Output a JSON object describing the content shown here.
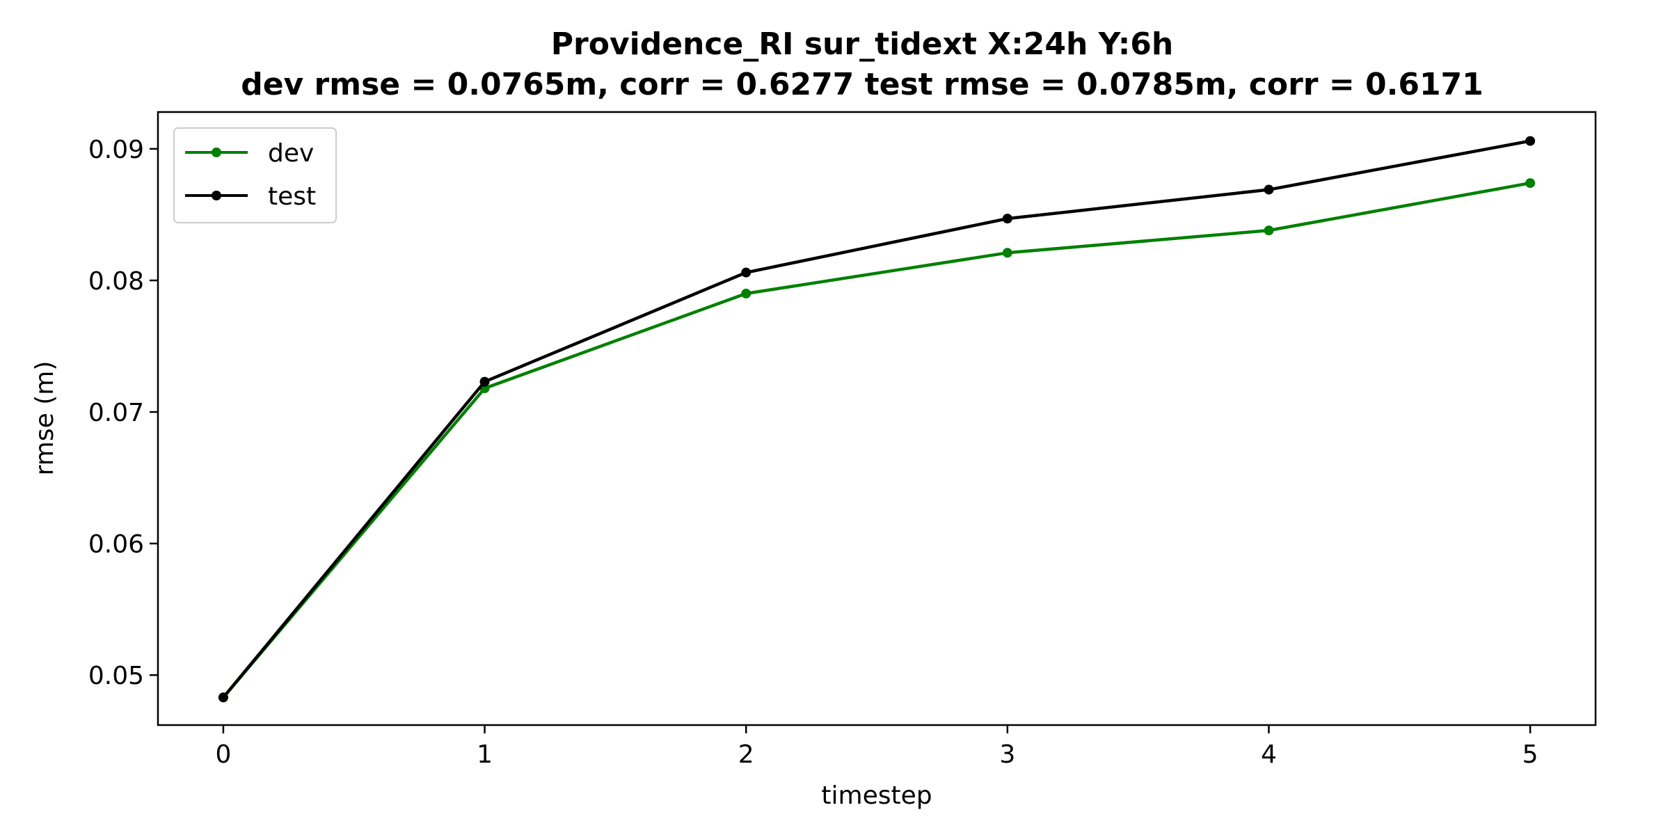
{
  "chart_data": {
    "type": "line",
    "title_line1": "Providence_RI   sur_tidext   X:24h   Y:6h",
    "title_line2": "dev rmse = 0.0765m, corr = 0.6277   test rmse = 0.0785m, corr = 0.6171",
    "xlabel": "timestep",
    "ylabel": "rmse (m)",
    "x": [
      0,
      1,
      2,
      3,
      4,
      5
    ],
    "xlim": [
      -0.25,
      5.25
    ],
    "ylim": [
      0.0462,
      0.0928
    ],
    "xticks": [
      0,
      1,
      2,
      3,
      4,
      5
    ],
    "yticks": [
      0.05,
      0.06,
      0.07,
      0.08,
      0.09
    ],
    "ytick_labels": [
      "0.05",
      "0.06",
      "0.07",
      "0.08",
      "0.09"
    ],
    "grid": false,
    "legend_position": "top-left",
    "series": [
      {
        "name": "dev",
        "color": "#008000",
        "values": [
          0.0483,
          0.0718,
          0.079,
          0.0821,
          0.0838,
          0.0874
        ]
      },
      {
        "name": "test",
        "color": "#000000",
        "values": [
          0.0483,
          0.0723,
          0.0806,
          0.0847,
          0.0869,
          0.0906
        ]
      }
    ]
  }
}
